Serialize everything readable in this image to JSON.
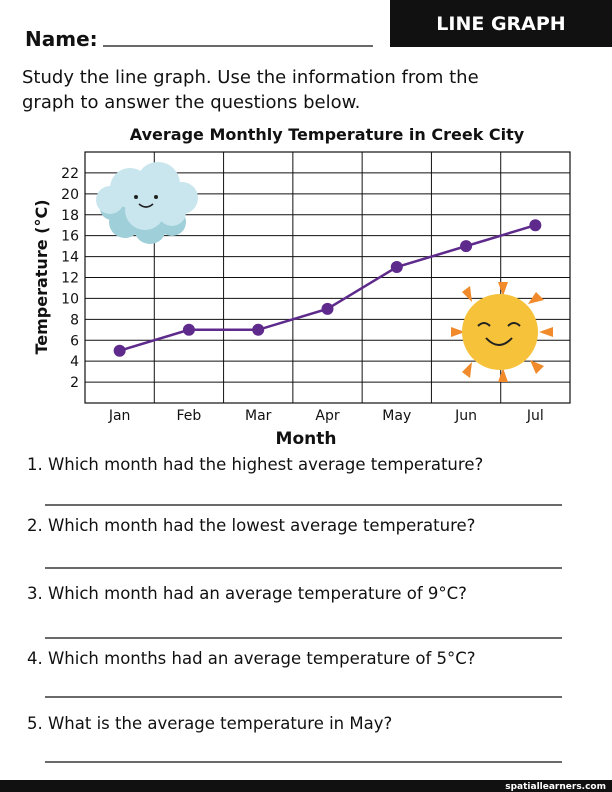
{
  "header": {
    "name_label": "Name:",
    "badge": "LINE GRAPH"
  },
  "instructions": [
    "Study the line graph. Use the information from the",
    "graph to answer the questions below."
  ],
  "chart_data": {
    "type": "line",
    "title": "Average Monthly Temperature in Creek City",
    "x_label": "Month",
    "y_label": "Temperature (°C)",
    "categories": [
      "Jan",
      "Feb",
      "Mar",
      "Apr",
      "May",
      "Jun",
      "Jul"
    ],
    "values": [
      5,
      7,
      7,
      9,
      13,
      15,
      17
    ],
    "color": "#5e2a8c",
    "ylim": [
      0,
      24
    ],
    "yticks": [
      2,
      4,
      6,
      8,
      10,
      12,
      14,
      16,
      18,
      20,
      22
    ],
    "grid": true
  },
  "questions": [
    "1. Which month had the highest average temperature?",
    "2. Which month had the lowest average temperature?",
    "3. Which month had an average temperature of 9°C?",
    "4. Which months had an average temperature of 5°C?",
    "5. What is the average temperature in May?"
  ],
  "footer": "spatiallearners.com"
}
